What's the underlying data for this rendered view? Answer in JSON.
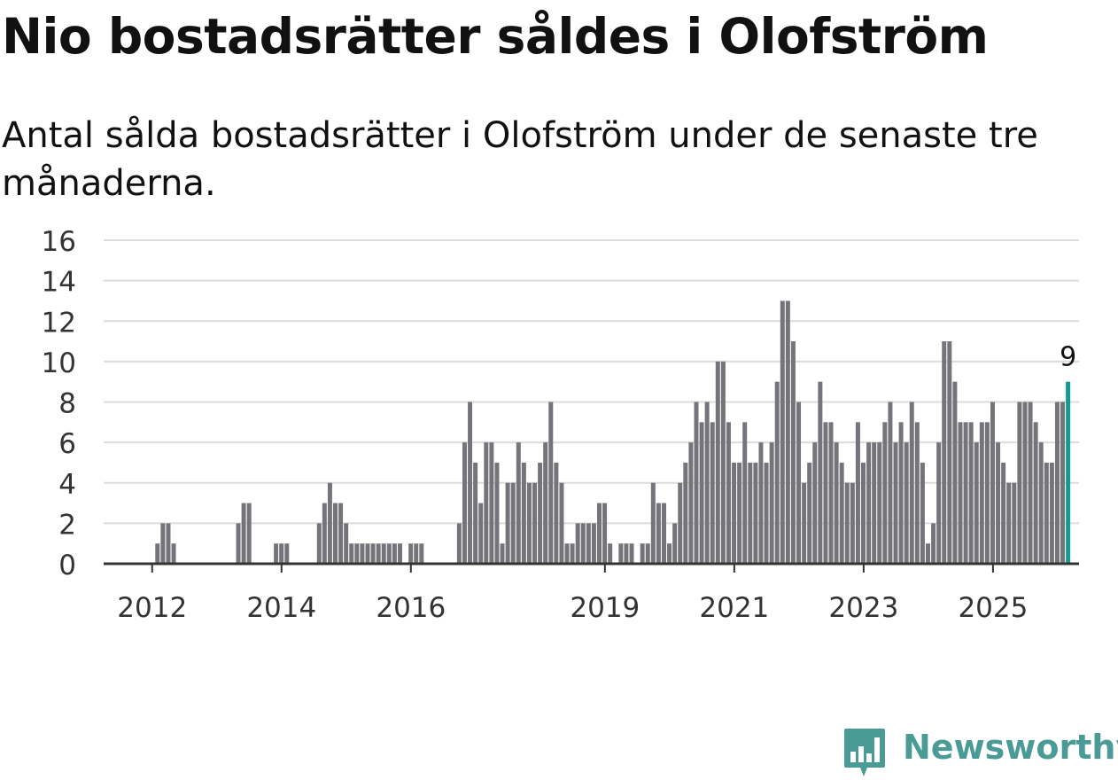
{
  "title": "Nio bostadsrätter såldes i Olofström",
  "subtitle": "Antal sålda bostadsrätter i Olofström under de senaste tre månaderna.",
  "brand": {
    "name": "Newsworthy",
    "logo_icon": "newsworthy-bar-chart-icon",
    "color": "#4a9b96"
  },
  "colors": {
    "bar": "#75747a",
    "highlight": "#139a93",
    "grid": "#dcdcdc",
    "axis": "#333333",
    "text": "#333333"
  },
  "chart_data": {
    "type": "bar",
    "title": "Nio bostadsrätter såldes i Olofström",
    "subtitle": "Antal sålda bostadsrätter i Olofström under de senaste tre månaderna.",
    "xlabel": "",
    "ylabel": "",
    "ylim": [
      0,
      16
    ],
    "yticks": [
      0,
      2,
      4,
      6,
      8,
      10,
      12,
      14,
      16
    ],
    "xtick_labels": [
      "2012",
      "2014",
      "2016",
      "2019",
      "2021",
      "2023",
      "2025"
    ],
    "xtick_positions": [
      2012,
      2014,
      2016,
      2019,
      2021,
      2023,
      2025
    ],
    "x_start": 2011.25,
    "x_end": 2026.33,
    "first_bar_x": 2011.333,
    "bar_step": 0.0833,
    "grid": true,
    "highlight_last": true,
    "highlight_label": "9",
    "values": [
      0,
      0,
      0,
      0,
      0,
      0,
      0,
      0,
      0,
      1,
      2,
      2,
      1,
      0,
      0,
      0,
      0,
      0,
      0,
      0,
      0,
      0,
      0,
      0,
      2,
      3,
      3,
      0,
      0,
      0,
      0,
      1,
      1,
      1,
      0,
      0,
      0,
      0,
      0,
      2,
      3,
      4,
      3,
      3,
      2,
      1,
      1,
      1,
      1,
      1,
      1,
      1,
      1,
      1,
      1,
      0,
      1,
      1,
      1,
      0,
      0,
      0,
      0,
      0,
      0,
      2,
      6,
      8,
      5,
      3,
      6,
      6,
      5,
      1,
      4,
      4,
      6,
      5,
      4,
      4,
      5,
      6,
      8,
      5,
      4,
      1,
      1,
      2,
      2,
      2,
      2,
      3,
      3,
      1,
      0,
      1,
      1,
      1,
      0,
      1,
      1,
      4,
      3,
      3,
      1,
      2,
      4,
      5,
      6,
      8,
      7,
      8,
      7,
      10,
      10,
      7,
      5,
      5,
      7,
      5,
      5,
      6,
      5,
      6,
      9,
      13,
      13,
      11,
      8,
      4,
      5,
      6,
      9,
      7,
      7,
      6,
      5,
      4,
      4,
      7,
      5,
      6,
      6,
      6,
      7,
      8,
      6,
      7,
      6,
      8,
      7,
      5,
      1,
      2,
      6,
      11,
      11,
      9,
      7,
      7,
      7,
      6,
      7,
      7,
      8,
      6,
      5,
      4,
      4,
      8,
      8,
      8,
      7,
      6,
      5,
      5,
      8,
      8,
      9
    ]
  }
}
